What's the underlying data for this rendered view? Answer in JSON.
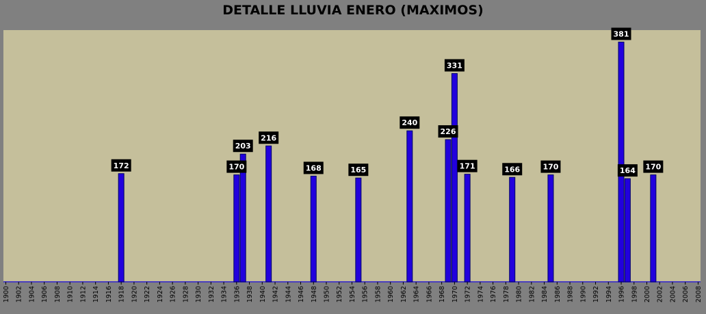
{
  "chart_data": {
    "type": "bar",
    "title": "DETALLE LLUVIA ENERO (MAXIMOS)",
    "xlabel": "",
    "ylabel": "",
    "x_range": [
      1900,
      2008
    ],
    "x_tick_step": 2,
    "ylim": [
      0,
      400
    ],
    "grid": false,
    "legend": "none",
    "colors": {
      "plot_background": "#c5bf9b",
      "outer_background": "#808080",
      "bar_fill": "#2200dd",
      "bar_stroke": "#000066",
      "baseline": "#4a3fbf",
      "label_background": "#000000",
      "label_text": "#ffffff"
    },
    "points": [
      {
        "year": 1918,
        "value": 172
      },
      {
        "year": 1936,
        "value": 170
      },
      {
        "year": 1937,
        "value": 203
      },
      {
        "year": 1941,
        "value": 216
      },
      {
        "year": 1948,
        "value": 168
      },
      {
        "year": 1955,
        "value": 165
      },
      {
        "year": 1963,
        "value": 240
      },
      {
        "year": 1969,
        "value": 226
      },
      {
        "year": 1970,
        "value": 331
      },
      {
        "year": 1972,
        "value": 171
      },
      {
        "year": 1979,
        "value": 166
      },
      {
        "year": 1985,
        "value": 170
      },
      {
        "year": 1996,
        "value": 381
      },
      {
        "year": 1997,
        "value": 164
      },
      {
        "year": 2001,
        "value": 170
      }
    ]
  }
}
